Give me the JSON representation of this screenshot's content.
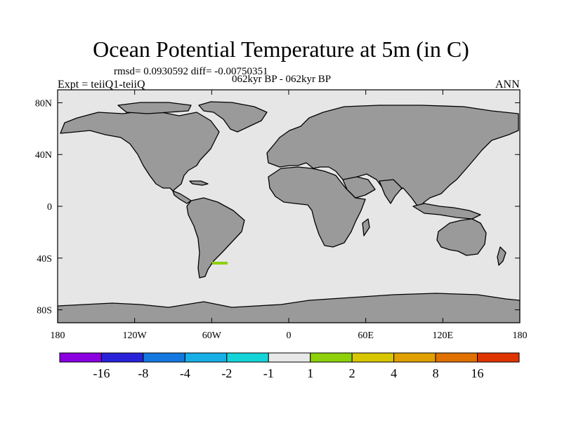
{
  "title": "Ocean Potential Temperature at 5m (in C)",
  "stats_text": "rmsd= 0.0930592 diff= -0.00750351",
  "period_text": "062kyr BP - 062kyr BP",
  "experiment_text": "Expt = teiiQ1-teiiQ",
  "season_text": "ANN",
  "colors": {
    "ocean": "#e6e6e6",
    "land": "#9a9a9a",
    "coast": "#000000",
    "anomaly_patch": "#8ed10a"
  },
  "chart_data": {
    "type": "heatmap",
    "projection": "cylindrical equidistant",
    "xlim": [
      -180,
      180
    ],
    "ylim": [
      -90,
      90
    ],
    "x_ticks": [
      {
        "value": -180,
        "label": "180"
      },
      {
        "value": -120,
        "label": "120W"
      },
      {
        "value": -60,
        "label": "60W"
      },
      {
        "value": 0,
        "label": "0"
      },
      {
        "value": 60,
        "label": "60E"
      },
      {
        "value": 120,
        "label": "120E"
      },
      {
        "value": 180,
        "label": "180"
      }
    ],
    "y_ticks": [
      {
        "value": 80,
        "label": "80N"
      },
      {
        "value": 40,
        "label": "40N"
      },
      {
        "value": 0,
        "label": "0"
      },
      {
        "value": -40,
        "label": "40S"
      },
      {
        "value": -80,
        "label": "80S"
      }
    ],
    "field_summary": {
      "dominant_bin": "-1 to 1",
      "notable_regions": [
        {
          "lon_range": [
            -68,
            -58
          ],
          "lat_range": [
            -44,
            -42
          ],
          "bin": "1 to 2"
        }
      ]
    },
    "colorbar": {
      "boundaries": [
        "-16",
        "-8",
        "-4",
        "-2",
        "-1",
        "1",
        "2",
        "4",
        "8",
        "16"
      ],
      "colors": [
        "#8a00e0",
        "#2a22d8",
        "#1478e0",
        "#18aee6",
        "#14d4d8",
        "#e8e8e8",
        "#8ed10a",
        "#d8c600",
        "#e0a000",
        "#e07000",
        "#e03400"
      ]
    }
  }
}
